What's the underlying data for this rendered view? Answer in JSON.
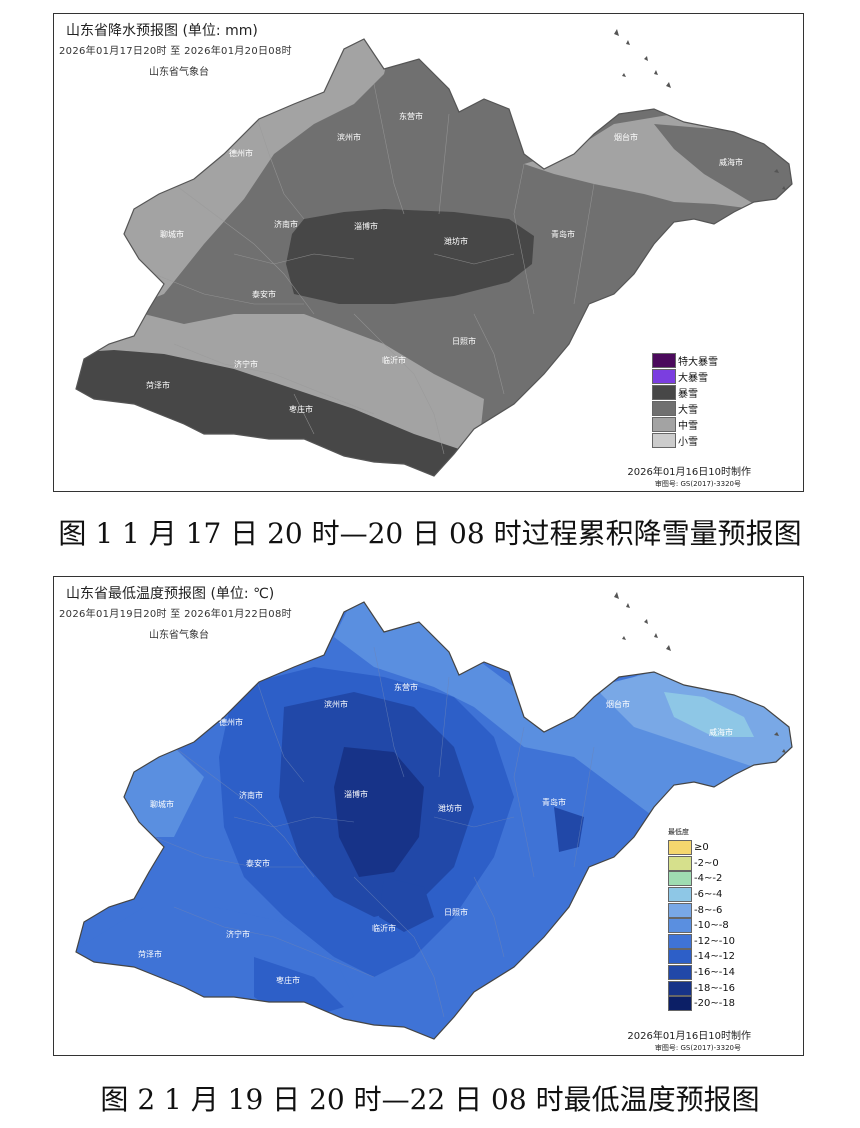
{
  "map1": {
    "title": "山东省降水预报图 (单位: mm)",
    "period": "2026年01月17日20时 至 2026年01月20日08时",
    "org": "山东省气象台",
    "made": "2026年01月16日10时制作",
    "review": "审图号: GS(2017)-3320号",
    "cities": [
      "滨州市",
      "东营市",
      "德州市",
      "烟台市",
      "威海市",
      "聊城市",
      "济南市",
      "淄博市",
      "潍坊市",
      "青岛市",
      "泰安市",
      "日照市",
      "济宁市",
      "临沂市",
      "菏泽市",
      "枣庄市"
    ],
    "legend": [
      {
        "label": "特大暴雪",
        "color": "#4b0a5c"
      },
      {
        "label": "大暴雪",
        "color": "#7b3ee0"
      },
      {
        "label": "暴雪",
        "color": "#474747"
      },
      {
        "label": "大雪",
        "color": "#707070"
      },
      {
        "label": "中雪",
        "color": "#a3a3a3"
      },
      {
        "label": "小雪",
        "color": "#cccccc"
      }
    ]
  },
  "caption1": "图 1  1 月 17 日 20 时—20 日 08 时过程累积降雪量预报图",
  "map2": {
    "title": "山东省最低温度预报图 (单位: ℃)",
    "period": "2026年01月19日20时 至 2026年01月22日08时",
    "org": "山东省气象台",
    "made": "2026年01月16日10时制作",
    "review": "审图号: GS(2017)-3320号",
    "cities": [
      "德州市",
      "滨州市",
      "东营市",
      "烟台市",
      "威海市",
      "聊城市",
      "济南市",
      "淄博市",
      "潍坊市",
      "青岛市",
      "泰安市",
      "日照市",
      "济宁市",
      "临沂市",
      "菏泽市",
      "枣庄市"
    ],
    "legend_title": "最低度",
    "legend": [
      {
        "label": "≥0",
        "color": "#f5d76e"
      },
      {
        "label": "-2~0",
        "color": "#d6e08c"
      },
      {
        "label": "-4~-2",
        "color": "#9fdcb2"
      },
      {
        "label": "-6~-4",
        "color": "#8ec7e6"
      },
      {
        "label": "-8~-6",
        "color": "#79a8e6"
      },
      {
        "label": "-10~-8",
        "color": "#5a8fe0"
      },
      {
        "label": "-12~-10",
        "color": "#3f73d6"
      },
      {
        "label": "-14~-12",
        "color": "#2d5fc8"
      },
      {
        "label": "-16~-14",
        "color": "#2148a8"
      },
      {
        "label": "-18~-16",
        "color": "#173388"
      },
      {
        "label": "-20~-18",
        "color": "#0c1f66"
      }
    ]
  },
  "caption2": "图 2  1 月 19 日 20 时—22 日 08 时最低温度预报图"
}
